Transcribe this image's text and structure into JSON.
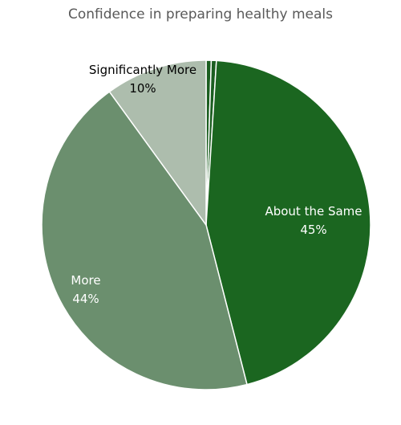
{
  "chart_data": {
    "type": "pie",
    "title": "Confidence in preparing healthy meals",
    "slices": [
      {
        "label": "",
        "value": 0.5,
        "color": "#1b5e20",
        "show_label": false
      },
      {
        "label": "",
        "value": 0.5,
        "color": "#1b5e20",
        "show_label": false
      },
      {
        "label": "About the Same",
        "value": 45,
        "pct_label": "45%",
        "color": "#1b6620",
        "text_color": "#ffffff",
        "show_label": true
      },
      {
        "label": "More",
        "value": 44,
        "pct_label": "44%",
        "color": "#6b8f6e",
        "text_color": "#ffffff",
        "show_label": true
      },
      {
        "label": "Significantly More",
        "value": 10,
        "pct_label": "10%",
        "color": "#adbdad",
        "text_color": "#000000",
        "show_label": true
      }
    ],
    "start_angle_deg": 0,
    "direction": "clockwise",
    "legend": "none"
  }
}
